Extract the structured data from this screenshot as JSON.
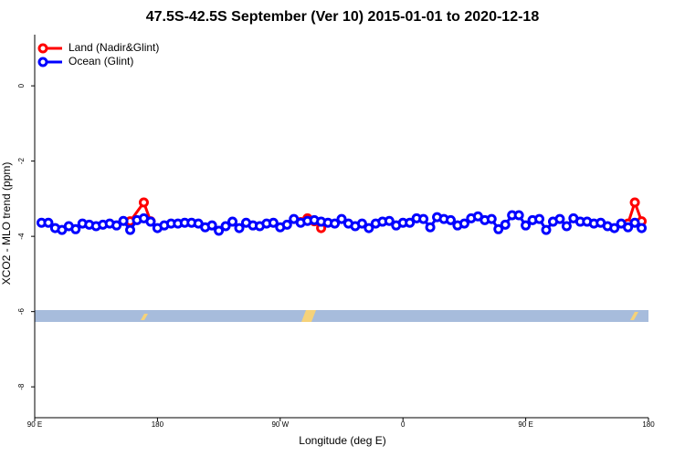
{
  "chart_data": {
    "type": "line",
    "title": "47.5S-42.5S September (Ver 10)   2015-01-01 to 2020-12-18",
    "x_label": "Longitude (deg E)",
    "y_label": "XCO2 - MLO trend (ppm)",
    "xlim": [
      90,
      540
    ],
    "ylim": [
      -8.82,
      1.36
    ],
    "xticks": [
      {
        "value": 90,
        "label": "90 E"
      },
      180,
      {
        "value": 270,
        "label": "90 W"
      },
      {
        "value": 360,
        "label": "0"
      },
      {
        "value": 450,
        "label": "90 E"
      },
      {
        "value": 540,
        "label": "180"
      }
    ],
    "yticks": [
      0,
      -2,
      -4,
      -6,
      -8
    ],
    "legend": "top-left",
    "series": [
      {
        "name": "Land (Nadir&Glint)",
        "color": "#ff0000",
        "x": [
          160,
          170,
          175,
          180,
          285,
          290,
          295,
          300,
          305,
          525,
          530,
          535
        ],
        "values": [
          -3.6,
          -3.1,
          -3.6,
          null,
          -3.62,
          -3.52,
          -3.6,
          -3.78,
          null,
          -3.66,
          -3.1,
          -3.6
        ]
      },
      {
        "name": "Ocean (Glint)",
        "color": "#0000ff",
        "x": [
          95,
          100,
          105,
          110,
          115,
          120,
          125,
          130,
          135,
          140,
          145,
          150,
          155,
          160,
          165,
          170,
          175,
          180,
          185,
          190,
          195,
          200,
          205,
          210,
          215,
          220,
          225,
          230,
          235,
          240,
          245,
          250,
          255,
          260,
          265,
          270,
          275,
          280,
          285,
          290,
          295,
          300,
          305,
          310,
          315,
          320,
          325,
          330,
          335,
          340,
          345,
          350,
          355,
          360,
          365,
          370,
          375,
          380,
          385,
          390,
          395,
          400,
          405,
          410,
          415,
          420,
          425,
          430,
          435,
          440,
          445,
          450,
          455,
          460,
          465,
          470,
          475,
          480,
          485,
          490,
          495,
          500,
          505,
          510,
          515,
          520,
          525,
          530,
          535
        ],
        "values": [
          -3.64,
          -3.64,
          -3.78,
          -3.83,
          -3.73,
          -3.81,
          -3.66,
          -3.69,
          -3.73,
          -3.69,
          -3.66,
          -3.71,
          -3.59,
          -3.83,
          -3.57,
          -3.52,
          -3.61,
          -3.78,
          -3.71,
          -3.66,
          -3.66,
          -3.64,
          -3.64,
          -3.66,
          -3.76,
          -3.71,
          -3.85,
          -3.73,
          -3.61,
          -3.78,
          -3.64,
          -3.71,
          -3.73,
          -3.66,
          -3.64,
          -3.76,
          -3.69,
          -3.54,
          -3.64,
          -3.59,
          -3.57,
          -3.61,
          -3.64,
          -3.66,
          -3.54,
          -3.66,
          -3.73,
          -3.66,
          -3.78,
          -3.66,
          -3.61,
          -3.59,
          -3.71,
          -3.64,
          -3.64,
          -3.52,
          -3.54,
          -3.76,
          -3.49,
          -3.54,
          -3.57,
          -3.71,
          -3.66,
          -3.52,
          -3.47,
          -3.57,
          -3.54,
          -3.81,
          -3.69,
          -3.44,
          -3.44,
          -3.71,
          -3.57,
          -3.54,
          -3.83,
          -3.61,
          -3.54,
          -3.73,
          -3.52,
          -3.61,
          -3.61,
          -3.66,
          -3.64,
          -3.73,
          -3.78,
          -3.66,
          -3.76,
          -3.64,
          -3.78
        ]
      }
    ]
  }
}
